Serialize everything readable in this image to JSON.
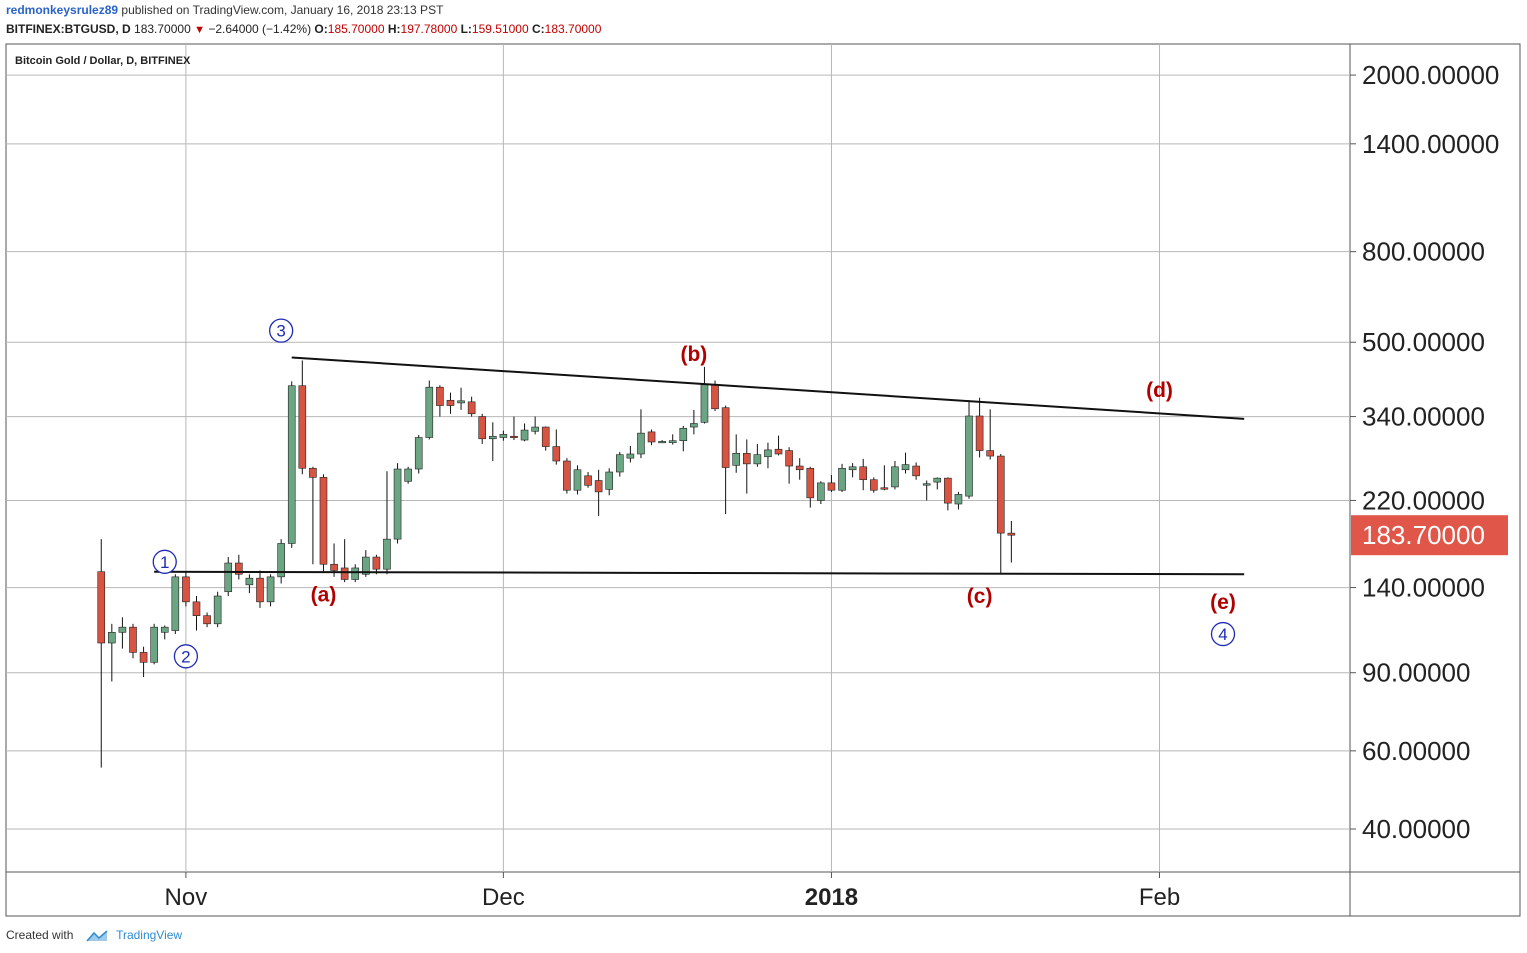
{
  "header": {
    "username": "redmonkeysrulez89",
    "published_text": "published on TradingView.com, January 16, 2018 23:13 PST",
    "symbol": "BITFINEX:BTGUSD, D",
    "last_price": "183.70000",
    "change": "−2.64000 (−1.42%)",
    "open_label": "O:",
    "open": "185.70000",
    "high_label": "H:",
    "high": "197.78000",
    "low_label": "L:",
    "low": "159.51000",
    "close_label": "C:",
    "close": "183.70000"
  },
  "footer": {
    "created_with": "Created with",
    "brand": "TradingView"
  },
  "colors": {
    "up": "#6ba583",
    "down": "#d75442",
    "wick": "#111111",
    "annotation_red": "#b00000",
    "wave_blue": "#1f2bb5",
    "grid": "#b7b7b7",
    "price_badge": "#e0574a"
  },
  "chart_data": {
    "type": "candlestick",
    "title": "Bitcoin Gold / Dollar, D, BITFINEX",
    "y_scale": "log",
    "ylim": [
      32,
      2350
    ],
    "y_ticks": [
      40,
      60,
      90,
      140,
      220,
      340,
      500,
      800,
      1400,
      2000
    ],
    "y_tick_labels": [
      "40.00000",
      "60.00000",
      "90.00000",
      "140.00000",
      "220.00000",
      "340.00000",
      "500.00000",
      "800.00000",
      "1400.00000",
      "2000.00000"
    ],
    "x_range": [
      "2017-10-15",
      "2018-02-19"
    ],
    "x_ticks": [
      {
        "date": "2017-11-01",
        "label": "Nov",
        "bold": false
      },
      {
        "date": "2017-12-01",
        "label": "Dec",
        "bold": false
      },
      {
        "date": "2018-01-01",
        "label": "2018",
        "bold": true
      },
      {
        "date": "2018-02-01",
        "label": "Feb",
        "bold": false
      }
    ],
    "current_price_label": "183.70000",
    "current_price": 183.7,
    "candles": [
      {
        "d": "2017-10-24",
        "o": 152,
        "h": 180,
        "l": 55,
        "c": 105
      },
      {
        "d": "2017-10-25",
        "o": 105,
        "h": 116,
        "l": 86,
        "c": 111
      },
      {
        "d": "2017-10-26",
        "o": 111,
        "h": 120,
        "l": 102,
        "c": 114
      },
      {
        "d": "2017-10-27",
        "o": 114,
        "h": 116,
        "l": 97,
        "c": 100
      },
      {
        "d": "2017-10-28",
        "o": 100,
        "h": 103,
        "l": 88,
        "c": 95
      },
      {
        "d": "2017-10-29",
        "o": 95,
        "h": 116,
        "l": 94,
        "c": 114
      },
      {
        "d": "2017-10-30",
        "o": 111,
        "h": 115,
        "l": 107,
        "c": 114
      },
      {
        "d": "2017-10-31",
        "o": 112,
        "h": 150,
        "l": 110,
        "c": 148
      },
      {
        "d": "2017-11-01",
        "o": 148,
        "h": 152,
        "l": 127,
        "c": 130
      },
      {
        "d": "2017-11-02",
        "o": 130,
        "h": 134,
        "l": 112,
        "c": 121
      },
      {
        "d": "2017-11-03",
        "o": 121,
        "h": 123,
        "l": 114,
        "c": 116
      },
      {
        "d": "2017-11-04",
        "o": 116,
        "h": 137,
        "l": 114,
        "c": 134
      },
      {
        "d": "2017-11-05",
        "o": 137,
        "h": 164,
        "l": 134,
        "c": 159
      },
      {
        "d": "2017-11-06",
        "o": 159,
        "h": 166,
        "l": 146,
        "c": 150
      },
      {
        "d": "2017-11-07",
        "o": 142,
        "h": 150,
        "l": 136,
        "c": 147
      },
      {
        "d": "2017-11-08",
        "o": 147,
        "h": 153,
        "l": 126,
        "c": 130
      },
      {
        "d": "2017-11-09",
        "o": 130,
        "h": 150,
        "l": 127,
        "c": 148
      },
      {
        "d": "2017-11-10",
        "o": 148,
        "h": 180,
        "l": 143,
        "c": 176
      },
      {
        "d": "2017-11-11",
        "o": 176,
        "h": 408,
        "l": 172,
        "c": 399
      },
      {
        "d": "2017-11-12",
        "o": 399,
        "h": 455,
        "l": 252,
        "c": 260
      },
      {
        "d": "2017-11-13",
        "o": 260,
        "h": 262,
        "l": 158,
        "c": 248
      },
      {
        "d": "2017-11-14",
        "o": 248,
        "h": 252,
        "l": 152,
        "c": 158
      },
      {
        "d": "2017-11-15",
        "o": 158,
        "h": 176,
        "l": 148,
        "c": 153
      },
      {
        "d": "2017-11-16",
        "o": 155,
        "h": 180,
        "l": 144,
        "c": 146
      },
      {
        "d": "2017-11-17",
        "o": 146,
        "h": 158,
        "l": 144,
        "c": 155
      },
      {
        "d": "2017-11-18",
        "o": 150,
        "h": 170,
        "l": 148,
        "c": 164
      },
      {
        "d": "2017-11-19",
        "o": 164,
        "h": 166,
        "l": 150,
        "c": 154
      },
      {
        "d": "2017-11-20",
        "o": 154,
        "h": 256,
        "l": 150,
        "c": 180
      },
      {
        "d": "2017-11-21",
        "o": 180,
        "h": 267,
        "l": 176,
        "c": 259
      },
      {
        "d": "2017-11-22",
        "o": 243,
        "h": 262,
        "l": 240,
        "c": 259
      },
      {
        "d": "2017-11-23",
        "o": 259,
        "h": 309,
        "l": 253,
        "c": 305
      },
      {
        "d": "2017-11-24",
        "o": 305,
        "h": 410,
        "l": 302,
        "c": 396
      },
      {
        "d": "2017-11-25",
        "o": 396,
        "h": 400,
        "l": 340,
        "c": 360
      },
      {
        "d": "2017-11-26",
        "o": 370,
        "h": 385,
        "l": 345,
        "c": 360
      },
      {
        "d": "2017-11-27",
        "o": 365,
        "h": 395,
        "l": 352,
        "c": 369
      },
      {
        "d": "2017-11-28",
        "o": 367,
        "h": 377,
        "l": 340,
        "c": 345
      },
      {
        "d": "2017-11-29",
        "o": 340,
        "h": 345,
        "l": 295,
        "c": 303
      },
      {
        "d": "2017-11-30",
        "o": 303,
        "h": 330,
        "l": 270,
        "c": 307
      },
      {
        "d": "2017-12-01",
        "o": 305,
        "h": 316,
        "l": 300,
        "c": 310
      },
      {
        "d": "2017-12-02",
        "o": 307,
        "h": 340,
        "l": 301,
        "c": 305
      },
      {
        "d": "2017-12-03",
        "o": 301,
        "h": 328,
        "l": 299,
        "c": 317
      },
      {
        "d": "2017-12-04",
        "o": 315,
        "h": 340,
        "l": 310,
        "c": 322
      },
      {
        "d": "2017-12-05",
        "o": 322,
        "h": 323,
        "l": 285,
        "c": 291
      },
      {
        "d": "2017-12-06",
        "o": 291,
        "h": 318,
        "l": 265,
        "c": 270
      },
      {
        "d": "2017-12-07",
        "o": 270,
        "h": 274,
        "l": 228,
        "c": 232
      },
      {
        "d": "2017-12-08",
        "o": 232,
        "h": 264,
        "l": 227,
        "c": 258
      },
      {
        "d": "2017-12-09",
        "o": 250,
        "h": 255,
        "l": 235,
        "c": 238
      },
      {
        "d": "2017-12-10",
        "o": 244,
        "h": 258,
        "l": 203,
        "c": 230
      },
      {
        "d": "2017-12-11",
        "o": 233,
        "h": 260,
        "l": 226,
        "c": 255
      },
      {
        "d": "2017-12-12",
        "o": 255,
        "h": 283,
        "l": 249,
        "c": 279
      },
      {
        "d": "2017-12-13",
        "o": 274,
        "h": 292,
        "l": 268,
        "c": 280
      },
      {
        "d": "2017-12-14",
        "o": 280,
        "h": 353,
        "l": 274,
        "c": 312
      },
      {
        "d": "2017-12-15",
        "o": 314,
        "h": 318,
        "l": 293,
        "c": 298
      },
      {
        "d": "2017-12-16",
        "o": 298,
        "h": 301,
        "l": 297,
        "c": 299
      },
      {
        "d": "2017-12-17",
        "o": 297,
        "h": 310,
        "l": 294,
        "c": 300
      },
      {
        "d": "2017-12-18",
        "o": 300,
        "h": 324,
        "l": 284,
        "c": 320
      },
      {
        "d": "2017-12-19",
        "o": 322,
        "h": 352,
        "l": 310,
        "c": 328
      },
      {
        "d": "2017-12-20",
        "o": 330,
        "h": 440,
        "l": 328,
        "c": 401
      },
      {
        "d": "2017-12-21",
        "o": 401,
        "h": 410,
        "l": 350,
        "c": 354
      },
      {
        "d": "2017-12-22",
        "o": 356,
        "h": 360,
        "l": 205,
        "c": 261
      },
      {
        "d": "2017-12-23",
        "o": 264,
        "h": 310,
        "l": 254,
        "c": 281
      },
      {
        "d": "2017-12-24",
        "o": 281,
        "h": 302,
        "l": 228,
        "c": 266
      },
      {
        "d": "2017-12-25",
        "o": 266,
        "h": 295,
        "l": 262,
        "c": 279
      },
      {
        "d": "2017-12-26",
        "o": 276,
        "h": 297,
        "l": 260,
        "c": 286
      },
      {
        "d": "2017-12-27",
        "o": 287,
        "h": 308,
        "l": 278,
        "c": 280
      },
      {
        "d": "2017-12-28",
        "o": 285,
        "h": 290,
        "l": 240,
        "c": 263
      },
      {
        "d": "2017-12-29",
        "o": 263,
        "h": 274,
        "l": 245,
        "c": 258
      },
      {
        "d": "2017-12-30",
        "o": 260,
        "h": 262,
        "l": 212,
        "c": 223
      },
      {
        "d": "2017-12-31",
        "o": 220,
        "h": 243,
        "l": 216,
        "c": 241
      },
      {
        "d": "2018-01-01",
        "o": 241,
        "h": 251,
        "l": 230,
        "c": 232
      },
      {
        "d": "2018-01-02",
        "o": 232,
        "h": 266,
        "l": 230,
        "c": 260
      },
      {
        "d": "2018-01-03",
        "o": 258,
        "h": 267,
        "l": 248,
        "c": 262
      },
      {
        "d": "2018-01-04",
        "o": 262,
        "h": 273,
        "l": 232,
        "c": 245
      },
      {
        "d": "2018-01-05",
        "o": 245,
        "h": 248,
        "l": 229,
        "c": 232
      },
      {
        "d": "2018-01-06",
        "o": 235,
        "h": 264,
        "l": 232,
        "c": 234
      },
      {
        "d": "2018-01-07",
        "o": 236,
        "h": 270,
        "l": 233,
        "c": 262
      },
      {
        "d": "2018-01-08",
        "o": 258,
        "h": 282,
        "l": 253,
        "c": 265
      },
      {
        "d": "2018-01-09",
        "o": 263,
        "h": 268,
        "l": 245,
        "c": 250
      },
      {
        "d": "2018-01-10",
        "o": 240,
        "h": 244,
        "l": 220,
        "c": 240
      },
      {
        "d": "2018-01-11",
        "o": 242,
        "h": 248,
        "l": 233,
        "c": 247
      },
      {
        "d": "2018-01-12",
        "o": 247,
        "h": 248,
        "l": 209,
        "c": 217
      },
      {
        "d": "2018-01-13",
        "o": 216,
        "h": 230,
        "l": 210,
        "c": 227
      },
      {
        "d": "2018-01-14",
        "o": 225,
        "h": 370,
        "l": 222,
        "c": 341
      },
      {
        "d": "2018-01-15",
        "o": 341,
        "h": 375,
        "l": 275,
        "c": 285
      },
      {
        "d": "2018-01-16",
        "o": 285,
        "h": 353,
        "l": 272,
        "c": 277
      },
      {
        "d": "2018-01-17",
        "o": 277,
        "h": 280,
        "l": 150,
        "c": 185.7
      },
      {
        "d": "2018-01-18",
        "o": 185.7,
        "h": 197.78,
        "l": 159.51,
        "c": 183.7
      }
    ],
    "trendlines": [
      {
        "name": "upper-trendline",
        "from": {
          "d": "2017-11-11",
          "v": 462
        },
        "to": {
          "d": "2018-02-09",
          "v": 336
        }
      },
      {
        "name": "lower-trendline",
        "from": {
          "d": "2017-10-29",
          "v": 152
        },
        "to": {
          "d": "2018-02-09",
          "v": 150
        }
      }
    ],
    "wave_labels": [
      {
        "name": "wave-1",
        "text": "1",
        "type": "circle",
        "d": "2017-10-30",
        "v": 160
      },
      {
        "name": "wave-2",
        "text": "2",
        "type": "circle",
        "d": "2017-11-01",
        "v": 98
      },
      {
        "name": "wave-3",
        "text": "3",
        "type": "circle",
        "d": "2017-11-10",
        "v": 531
      },
      {
        "name": "wave-4",
        "text": "4",
        "type": "circle",
        "d": "2018-02-07",
        "v": 110
      },
      {
        "name": "wave-a",
        "text": "(a)",
        "type": "text",
        "d": "2017-11-14",
        "v": 135
      },
      {
        "name": "wave-b",
        "text": "(b)",
        "type": "text",
        "d": "2017-12-19",
        "v": 470
      },
      {
        "name": "wave-c",
        "text": "(c)",
        "type": "text",
        "d": "2018-01-15",
        "v": 134
      },
      {
        "name": "wave-d",
        "text": "(d)",
        "type": "text",
        "d": "2018-02-01",
        "v": 390
      },
      {
        "name": "wave-e",
        "text": "(e)",
        "type": "text",
        "d": "2018-02-07",
        "v": 130
      }
    ]
  }
}
